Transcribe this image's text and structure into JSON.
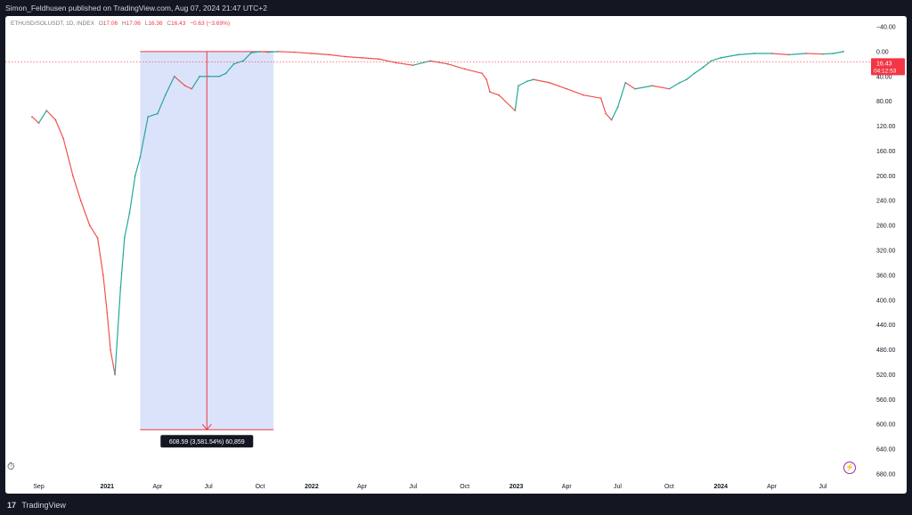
{
  "header": {
    "published_text": "Simon_Feldhusen published on TradingView.com, Aug 07, 2024 21:47 UTC+2"
  },
  "legend": {
    "symbol": "ETHUSD/SOLUSDT, 1D, INDEX",
    "open_label": "O",
    "open": "17.06",
    "high_label": "H",
    "high": "17.06",
    "low_label": "L",
    "low": "16.36",
    "close_label": "C",
    "close": "16.43",
    "change": "−0.63 (−3.69%)"
  },
  "price_label": {
    "value": "16.43",
    "countdown": "04:12:53"
  },
  "measure_label": "608.59 (3,581.54%) 60,859",
  "footer": {
    "logo": "17",
    "brand": "TradingView"
  },
  "colors": {
    "up": "#26a69a",
    "down": "#ef5350",
    "measure_fill": "#dbe3fb",
    "measure_line": "#f23645",
    "price_tag": "#f23645"
  },
  "icons": {
    "stopwatch": "stopwatch-icon",
    "lightning": "lightning-icon"
  },
  "chart_data": {
    "type": "line",
    "y_axis_inverted": true,
    "ylim": [
      680,
      -40
    ],
    "y_ticks": [
      "−40.00",
      "0.00",
      "40.00",
      "80.00",
      "120.00",
      "160.00",
      "200.00",
      "240.00",
      "280.00",
      "320.00",
      "360.00",
      "400.00",
      "440.00",
      "480.00",
      "520.00",
      "560.00",
      "600.00",
      "640.00",
      "680.00"
    ],
    "x_ticks": [
      "Sep",
      "2021",
      "Apr",
      "Jul",
      "Oct",
      "2022",
      "Apr",
      "Jul",
      "Oct",
      "2023",
      "Apr",
      "Jul",
      "Oct",
      "2024",
      "Apr",
      "Jul"
    ],
    "x": [
      "2020-08-20",
      "2020-09-01",
      "2020-09-15",
      "2020-10-01",
      "2020-10-15",
      "2020-11-01",
      "2020-11-15",
      "2020-12-01",
      "2020-12-15",
      "2020-12-25",
      "2021-01-01",
      "2021-01-07",
      "2021-01-15",
      "2021-01-25",
      "2021-02-01",
      "2021-02-10",
      "2021-02-20",
      "2021-03-01",
      "2021-03-15",
      "2021-04-01",
      "2021-04-15",
      "2021-05-01",
      "2021-05-20",
      "2021-06-01",
      "2021-06-15",
      "2021-07-01",
      "2021-07-20",
      "2021-08-01",
      "2021-08-15",
      "2021-09-01",
      "2021-09-15",
      "2021-10-01",
      "2021-10-15",
      "2021-11-01",
      "2021-12-01",
      "2022-01-01",
      "2022-02-01",
      "2022-03-01",
      "2022-04-01",
      "2022-05-01",
      "2022-06-01",
      "2022-07-01",
      "2022-08-01",
      "2022-09-01",
      "2022-10-01",
      "2022-11-01",
      "2022-11-09",
      "2022-11-15",
      "2022-12-01",
      "2022-12-30",
      "2023-01-05",
      "2023-01-20",
      "2023-02-01",
      "2023-03-01",
      "2023-04-01",
      "2023-05-01",
      "2023-06-01",
      "2023-06-10",
      "2023-06-20",
      "2023-07-01",
      "2023-07-15",
      "2023-08-01",
      "2023-09-01",
      "2023-10-01",
      "2023-10-20",
      "2023-11-01",
      "2023-11-15",
      "2023-12-01",
      "2023-12-15",
      "2024-01-01",
      "2024-02-01",
      "2024-03-01",
      "2024-04-01",
      "2024-05-01",
      "2024-06-01",
      "2024-07-01",
      "2024-07-20",
      "2024-08-07"
    ],
    "series": [
      {
        "values": [
          105,
          115,
          95,
          110,
          140,
          200,
          240,
          280,
          300,
          360,
          420,
          480,
          520,
          380,
          300,
          260,
          200,
          170,
          105,
          100,
          70,
          40,
          55,
          60,
          40,
          40,
          40,
          35,
          20,
          15,
          2,
          0,
          1,
          0,
          1,
          3,
          5,
          8,
          10,
          12,
          18,
          22,
          15,
          20,
          28,
          35,
          45,
          65,
          70,
          95,
          55,
          48,
          45,
          50,
          60,
          70,
          75,
          100,
          110,
          90,
          50,
          60,
          55,
          60,
          50,
          45,
          35,
          25,
          15,
          10,
          5,
          3,
          3,
          5,
          3,
          4,
          3,
          0
        ]
      }
    ]
  }
}
